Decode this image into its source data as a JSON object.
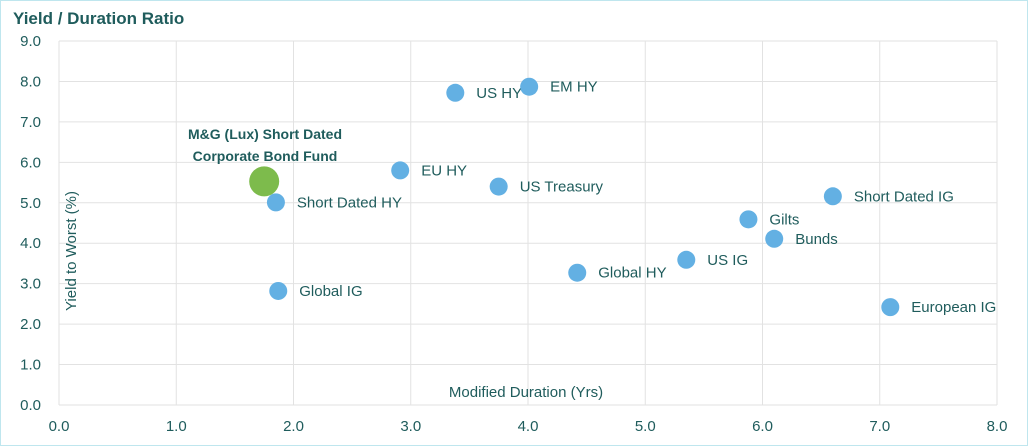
{
  "chart_data": {
    "type": "scatter",
    "title": "Yield / Duration Ratio",
    "xlabel": "Modified Duration (Yrs)",
    "ylabel": "Yield to Worst (%)",
    "xlim": [
      0,
      8
    ],
    "ylim": [
      0,
      9
    ],
    "x_ticks": [
      "0.0",
      "1.0",
      "2.0",
      "3.0",
      "4.0",
      "5.0",
      "6.0",
      "7.0",
      "8.0"
    ],
    "y_ticks": [
      "0.0",
      "1.0",
      "2.0",
      "3.0",
      "4.0",
      "5.0",
      "6.0",
      "7.0",
      "8.0",
      "9.0"
    ],
    "grid": true,
    "colors": {
      "points": "#63b0e3",
      "highlight": "#7dbb4c",
      "text": "#1f5c5c",
      "grid": "#e2e2e2"
    },
    "points": [
      {
        "label": "US HY",
        "x": 3.38,
        "y": 7.72
      },
      {
        "label": "EM HY",
        "x": 4.01,
        "y": 7.87
      },
      {
        "label": "EU HY",
        "x": 2.91,
        "y": 5.8
      },
      {
        "label": "US Treasury",
        "x": 3.75,
        "y": 5.4
      },
      {
        "label": "Short Dated HY",
        "x": 1.85,
        "y": 5.01
      },
      {
        "label": "Short Dated IG",
        "x": 6.6,
        "y": 5.16
      },
      {
        "label": "Gilts",
        "x": 5.88,
        "y": 4.59
      },
      {
        "label": "Bunds",
        "x": 6.1,
        "y": 4.11
      },
      {
        "label": "US IG",
        "x": 5.35,
        "y": 3.59
      },
      {
        "label": "Global HY",
        "x": 4.42,
        "y": 3.27
      },
      {
        "label": "Global IG",
        "x": 1.87,
        "y": 2.82
      },
      {
        "label": "European IG",
        "x": 7.09,
        "y": 2.42
      }
    ],
    "highlight": {
      "label_line1": "M&G (Lux) Short Dated",
      "label_line2": "Corporate Bond Fund",
      "x": 1.75,
      "y": 5.53
    }
  }
}
